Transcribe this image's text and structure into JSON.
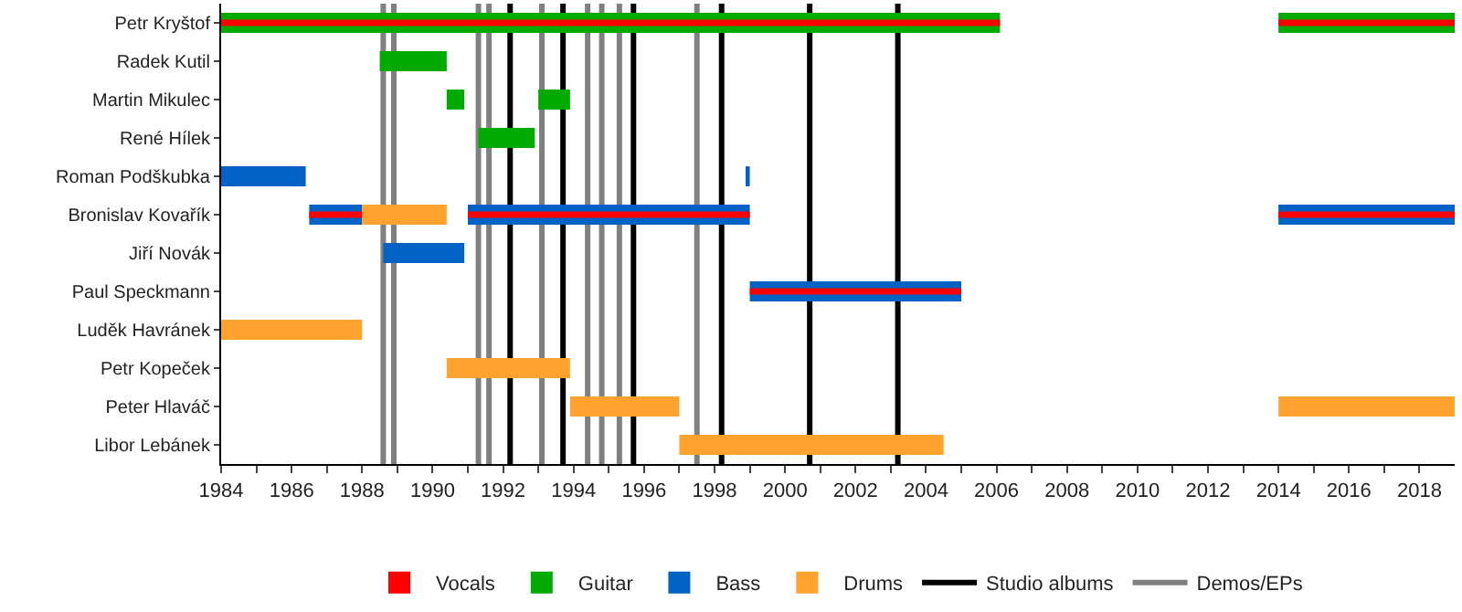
{
  "chart_data": {
    "type": "bar",
    "orientation": "horizontal",
    "categories": [
      "Petr Kryštof",
      "Radek Kutil",
      "Martin Mikulec",
      "René Hílek",
      "Roman Podškubka",
      "Bronislav Kovařík",
      "Jiří Novák",
      "Paul Speckmann",
      "Luděk Havránek",
      "Petr Kopeček",
      "Peter Hlaváč",
      "Libor Lebánek"
    ],
    "series": [
      {
        "name": "Vocals",
        "color": "#ff0000",
        "values": [
          22.1,
          null,
          null,
          null,
          null,
          1.5,
          null,
          6,
          null,
          null,
          null,
          null
        ],
        "base": [
          1984,
          null,
          null,
          null,
          null,
          1986.5,
          null,
          1999,
          null,
          null,
          null,
          null
        ]
      },
      {
        "color": "#ff0000",
        "values": [
          5,
          null,
          null,
          null,
          null,
          8,
          null,
          null,
          null,
          null,
          null,
          null
        ],
        "base": [
          2014,
          null,
          null,
          null,
          null,
          1991,
          null,
          null,
          null,
          null,
          null,
          null
        ]
      },
      {
        "color": "#ff0000",
        "values": [
          null,
          null,
          null,
          null,
          null,
          5,
          null,
          null,
          null,
          null,
          null,
          null
        ],
        "base": [
          null,
          null,
          null,
          null,
          null,
          2014,
          null,
          null,
          null,
          null,
          null,
          null
        ]
      },
      {
        "name": "Guitar",
        "color": "#00aa00",
        "values": [
          22.1,
          1.9,
          0.5,
          1.6,
          null,
          null,
          null,
          null,
          null,
          null,
          null,
          null
        ],
        "base": [
          1984,
          1988.5,
          1990.4,
          1991.3,
          null,
          null,
          null,
          null,
          null,
          null,
          null,
          null
        ]
      },
      {
        "color": "#00aa00",
        "values": [
          5,
          null,
          0.9,
          null,
          null,
          null,
          null,
          null,
          null,
          null,
          null,
          null
        ],
        "base": [
          2014,
          null,
          1993.0,
          null,
          null,
          null,
          null,
          null,
          null,
          null,
          null,
          null
        ]
      },
      {
        "name": "Bass",
        "color": "#0062c4",
        "values": [
          null,
          null,
          null,
          null,
          2.4,
          1.5,
          2.3,
          6,
          null,
          null,
          null,
          null
        ],
        "base": [
          null,
          null,
          null,
          null,
          1984,
          1986.5,
          1988.6,
          1999,
          null,
          null,
          null,
          null
        ]
      },
      {
        "color": "#0062c4",
        "values": [
          null,
          null,
          null,
          null,
          0.1,
          8,
          null,
          null,
          null,
          null,
          null,
          null
        ],
        "base": [
          null,
          null,
          null,
          null,
          1998.9,
          1991,
          null,
          null,
          null,
          null,
          null,
          null
        ]
      },
      {
        "color": "#0062c4",
        "values": [
          null,
          null,
          null,
          null,
          null,
          5,
          null,
          null,
          null,
          null,
          null,
          null
        ],
        "base": [
          null,
          null,
          null,
          null,
          null,
          2014,
          null,
          null,
          null,
          null,
          null,
          null
        ]
      },
      {
        "name": "Drums",
        "color": "#ffa32e",
        "values": [
          null,
          null,
          null,
          null,
          null,
          2.4,
          null,
          null,
          4,
          3.5,
          3.1,
          7.5
        ],
        "base": [
          null,
          null,
          null,
          null,
          null,
          1988.0,
          null,
          null,
          1984,
          1990.4,
          1993.9,
          1997.0
        ]
      },
      {
        "color": "#ffa32e",
        "values": [
          null,
          null,
          null,
          null,
          null,
          null,
          null,
          null,
          null,
          null,
          5,
          null
        ],
        "base": [
          null,
          null,
          null,
          null,
          null,
          null,
          null,
          null,
          null,
          null,
          2014,
          null
        ]
      }
    ],
    "ref_lines": [
      {
        "axis": "x",
        "value": 1992.2,
        "label": "Studio albums",
        "color": "#000000"
      },
      {
        "axis": "x",
        "value": 1993.7,
        "color": "#000000"
      },
      {
        "axis": "x",
        "value": 1995.7,
        "color": "#000000"
      },
      {
        "axis": "x",
        "value": 1998.2,
        "color": "#000000"
      },
      {
        "axis": "x",
        "value": 2000.7,
        "color": "#000000"
      },
      {
        "axis": "x",
        "value": 2003.2,
        "color": "#000000"
      },
      {
        "axis": "x",
        "value": 1988.6,
        "label": "Demos/EPs",
        "color": "#808080"
      },
      {
        "axis": "x",
        "value": 1988.9,
        "color": "#808080"
      },
      {
        "axis": "x",
        "value": 1991.3,
        "color": "#808080"
      },
      {
        "axis": "x",
        "value": 1991.6,
        "color": "#808080"
      },
      {
        "axis": "x",
        "value": 1993.1,
        "color": "#808080"
      },
      {
        "axis": "x",
        "value": 1994.4,
        "color": "#808080"
      },
      {
        "axis": "x",
        "value": 1994.8,
        "color": "#808080"
      },
      {
        "axis": "x",
        "value": 1995.3,
        "color": "#808080"
      },
      {
        "axis": "x",
        "value": 1997.5,
        "color": "#808080"
      }
    ],
    "xlim": [
      1984,
      2019
    ],
    "xticks": [
      1984,
      {
        "value": 1985,
        "label": null
      },
      1986,
      {
        "value": 1987,
        "label": null
      },
      1988,
      {
        "value": 1989,
        "label": null
      },
      1990,
      {
        "value": 1991,
        "label": null
      },
      1992,
      {
        "value": 1993,
        "label": null
      },
      1994,
      {
        "value": 1995,
        "label": null
      },
      1996,
      {
        "value": 1997,
        "label": null
      },
      1998,
      {
        "value": 1999,
        "label": null
      },
      2000,
      {
        "value": 2001,
        "label": null
      },
      2002,
      {
        "value": 2003,
        "label": null
      },
      2004,
      {
        "value": 2005,
        "label": null
      },
      2006,
      {
        "value": 2007,
        "label": null
      },
      2008,
      {
        "value": 2009,
        "label": null
      },
      2010,
      {
        "value": 2011,
        "label": null
      },
      2012,
      {
        "value": 2013,
        "label": null
      },
      2014,
      {
        "value": 2015,
        "label": null
      },
      2016,
      {
        "value": 2017,
        "label": null
      },
      2018
    ],
    "grid": false,
    "legend": "bottom"
  }
}
